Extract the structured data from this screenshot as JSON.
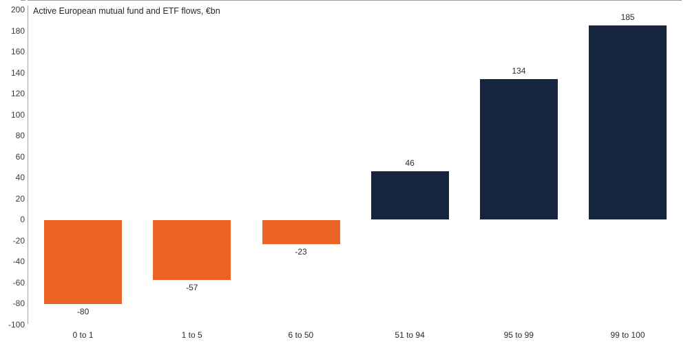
{
  "chart_data": {
    "type": "bar",
    "title": "Active European mutual fund and ETF flows, €bn",
    "categories": [
      "0 to 1",
      "1 to 5",
      "6 to 50",
      "51 to 94",
      "95 to 99",
      "99 to 100"
    ],
    "values": [
      -80,
      -57,
      -23,
      46,
      134,
      185
    ],
    "xlabel": "",
    "ylabel": "",
    "ylim": [
      -100,
      200
    ],
    "yticks": [
      200,
      180,
      160,
      140,
      120,
      100,
      80,
      60,
      40,
      20,
      0,
      -20,
      -40,
      -60,
      -80,
      -100
    ],
    "grid": false,
    "legend": false,
    "data_labels": "outside-end",
    "colors": {
      "positive_bar": "#16253E",
      "negative_bar": "#EB6426",
      "axis_line": "#A6A6A6",
      "text": "#2B2B2B"
    }
  },
  "layout_note": ""
}
